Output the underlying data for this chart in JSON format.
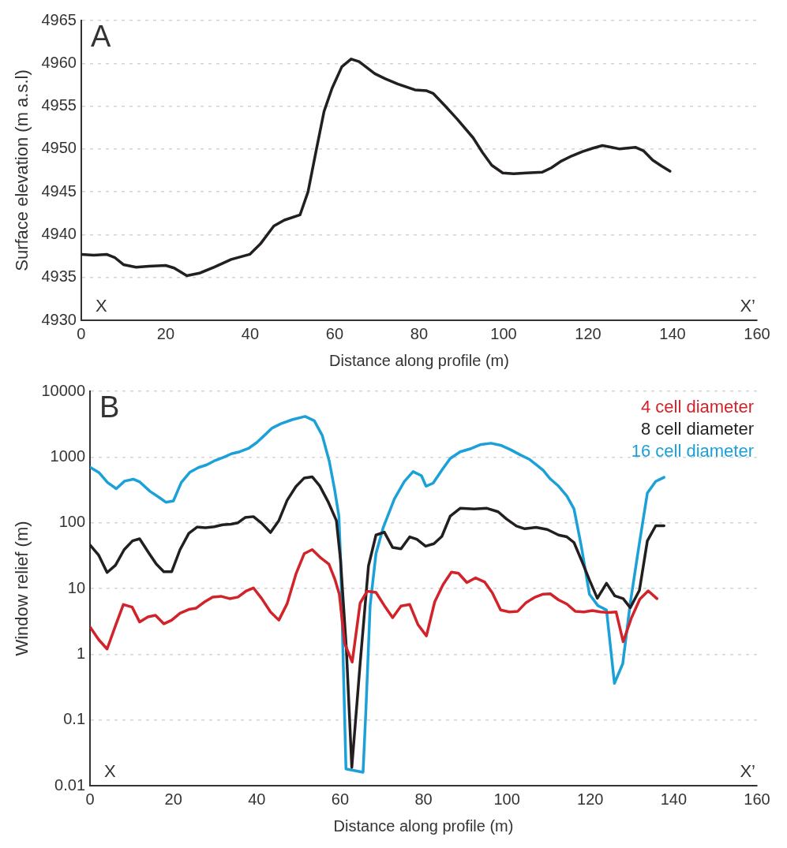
{
  "chart_data": [
    {
      "type": "line",
      "xlabel": "Distance along profile (m)",
      "ylabel": "Surface elevation (m a.s.l)",
      "annotations": [
        "A",
        "X",
        "X’"
      ],
      "xlim": [
        0,
        160
      ],
      "xticks": [
        0,
        20,
        40,
        60,
        80,
        100,
        120,
        140,
        160
      ],
      "ylim": [
        4930,
        4965
      ],
      "yticks": [
        4930,
        4935,
        4940,
        4945,
        4950,
        4955,
        4960,
        4965
      ],
      "grid": "y",
      "marker": "none",
      "line_style": "solid",
      "color": "#231f20",
      "x": [
        0,
        3,
        6,
        8,
        10,
        13,
        16,
        20,
        22,
        25,
        28,
        31.5,
        35.5,
        39.9,
        42.4,
        45.6,
        48.1,
        51.8,
        53.7,
        55.7,
        57.5,
        59.4,
        61.7,
        63.9,
        65.8,
        69.5,
        72,
        74.9,
        79,
        81.8,
        83.3,
        86.2,
        89,
        92.8,
        95,
        97.2,
        99.8,
        102.4,
        105.4,
        109.2,
        111.3,
        113.7,
        116.2,
        118.7,
        121.2,
        123.4,
        125.6,
        127.5,
        129.3,
        131.2,
        133.1,
        135.3,
        137.4,
        139.4
      ],
      "values": [
        4937.7,
        4937.6,
        4937.7,
        4937.3,
        4936.5,
        4936.2,
        4936.3,
        4936.4,
        4936.1,
        4935.2,
        4935.5,
        4936.2,
        4937.1,
        4937.7,
        4938.9,
        4941.0,
        4941.7,
        4942.3,
        4945.0,
        4950.0,
        4954.4,
        4957.1,
        4959.6,
        4960.5,
        4960.2,
        4958.8,
        4958.2,
        4957.6,
        4956.9,
        4956.8,
        4956.5,
        4955.0,
        4953.5,
        4951.3,
        4949.6,
        4948.1,
        4947.2,
        4947.1,
        4947.2,
        4947.3,
        4947.8,
        4948.6,
        4949.2,
        4949.7,
        4950.1,
        4950.4,
        4950.2,
        4950.0,
        4950.1,
        4950.2,
        4949.8,
        4948.7,
        4948.0,
        4947.4
      ]
    },
    {
      "type": "line",
      "xlabel": "Distance along profile (m)",
      "ylabel": "Window relief (m)",
      "annotations": [
        "B",
        "X",
        "X’"
      ],
      "xlim": [
        0,
        160
      ],
      "xticks": [
        0,
        20,
        40,
        60,
        80,
        100,
        120,
        140,
        160
      ],
      "log": "y",
      "ylim": [
        0.01,
        10000
      ],
      "yticks": [
        0.01,
        0.1,
        1,
        10,
        100,
        1000,
        10000
      ],
      "grid": "y",
      "legend": "top right",
      "marker": "none",
      "line_style": "solid",
      "series": [
        {
          "name": "4 cell diameter",
          "color": "#d2232a",
          "x": [
            0,
            2.1,
            4.1,
            6.1,
            8,
            10.1,
            11.9,
            13.9,
            15.7,
            17.7,
            19.6,
            21.6,
            23.7,
            25.4,
            27.4,
            29.4,
            31.4,
            33.5,
            35.5,
            37.5,
            39.2,
            41.2,
            43.3,
            45.3,
            47.3,
            49.4,
            51.4,
            53.3,
            55.4,
            57.3,
            58.8,
            59.8,
            61.1,
            62.9,
            64.8,
            66.5,
            68.6,
            70.6,
            72.6,
            74.6,
            76.7,
            78.7,
            80.7,
            82.7,
            84.7,
            86.7,
            88.4,
            90.4,
            92.5,
            94.7,
            96.5,
            98.5,
            100.6,
            102.6,
            104.6,
            106.6,
            108.7,
            110.4,
            112.4,
            114.4,
            116.4,
            118.5,
            120.5,
            122.5,
            124.2,
            126.2,
            127.9,
            129.9,
            131.9,
            133.9,
            136
          ],
          "values": [
            2.6,
            1.66,
            1.2,
            2.7,
            5.7,
            5.2,
            3.1,
            3.7,
            3.9,
            2.9,
            3.3,
            4.2,
            4.8,
            5.0,
            6.2,
            7.4,
            7.6,
            7.0,
            7.4,
            9.2,
            10.2,
            7.0,
            4.4,
            3.3,
            5.9,
            16.6,
            34,
            39,
            29,
            23.5,
            13.5,
            8.2,
            1.45,
            0.76,
            6.0,
            9.1,
            8.7,
            5.5,
            3.6,
            5.4,
            5.7,
            2.8,
            1.9,
            6.3,
            11.5,
            17.7,
            17,
            12.3,
            14.5,
            12.5,
            8.6,
            4.7,
            4.4,
            4.5,
            6.1,
            7.3,
            8.2,
            8.3,
            6.7,
            5.8,
            4.5,
            4.4,
            4.6,
            4.4,
            4.3,
            4.4,
            1.55,
            3.6,
            6.9,
            9.2,
            7.0
          ]
        },
        {
          "name": "8 cell diameter",
          "color": "#231f20",
          "x": [
            0,
            2.1,
            4.1,
            6.1,
            8.2,
            10.2,
            11.9,
            14.2,
            15.9,
            17.7,
            19.6,
            21.6,
            23.7,
            25.7,
            27.7,
            29.8,
            31.8,
            33.8,
            35.5,
            37.2,
            39.2,
            41.2,
            43.3,
            45.3,
            47.3,
            49.4,
            51.4,
            53.3,
            55.1,
            57.1,
            59.1,
            60.1,
            61.5,
            62.8,
            64.8,
            66.8,
            68.6,
            70.6,
            72.6,
            74.6,
            76.7,
            78.4,
            80.5,
            82.5,
            84.4,
            86.4,
            88.8,
            92.1,
            95.2,
            97.9,
            99.9,
            102.3,
            104.3,
            107,
            109.7,
            112.4,
            114.4,
            116.1,
            118.1,
            119.8,
            121.7,
            123.9,
            125.9,
            127.9,
            129.6,
            131.8,
            133.7,
            135.7,
            137.7
          ],
          "values": [
            46,
            32,
            17.5,
            22.5,
            39,
            53,
            57,
            34,
            23.5,
            18,
            18,
            39,
            69,
            86,
            84,
            87,
            93,
            95,
            100,
            120,
            124,
            98,
            71,
            108,
            220,
            355,
            480,
            500,
            365,
            210,
            108,
            27,
            1.2,
            0.019,
            0.72,
            22,
            65,
            72,
            42,
            40,
            61,
            56,
            44,
            48,
            62,
            126,
            166,
            162,
            166,
            147,
            114,
            89,
            81,
            85,
            79,
            65,
            61,
            50,
            25,
            13.5,
            7.1,
            12,
            7.7,
            7.0,
            5.1,
            9.4,
            53,
            90,
            90
          ]
        },
        {
          "name": "16 cell diameter",
          "color": "#1ba1d8",
          "x": [
            0,
            2.2,
            4.2,
            6.3,
            8.3,
            10.4,
            12,
            14.4,
            16.5,
            18.2,
            20,
            21.9,
            24,
            26,
            28,
            30.1,
            32.2,
            33.9,
            35.9,
            38,
            40,
            41.7,
            43.7,
            45.8,
            48.5,
            51.6,
            53.8,
            55.7,
            57.4,
            58.7,
            59.7,
            60.1,
            61.4,
            65.5,
            66.2,
            67.2,
            68.6,
            70.3,
            73,
            75.4,
            77.5,
            79.5,
            80.6,
            82.3,
            84.4,
            86.4,
            88.8,
            91.5,
            93.8,
            96.2,
            98.5,
            100.9,
            103.3,
            105.3,
            107,
            108.7,
            110.4,
            112.4,
            114.4,
            116.1,
            117.8,
            119.8,
            121.8,
            123.9,
            125.8,
            127.8,
            129.6,
            131.6,
            133.7,
            135.7,
            137.7
          ],
          "values": [
            700,
            575,
            410,
            330,
            430,
            460,
            415,
            300,
            245,
            205,
            215,
            410,
            590,
            690,
            760,
            890,
            1000,
            1120,
            1200,
            1350,
            1660,
            2090,
            2760,
            3210,
            3700,
            4140,
            3560,
            2140,
            860,
            315,
            126,
            30,
            0.018,
            0.016,
            0.15,
            5.5,
            34,
            83,
            230,
            425,
            600,
            520,
            360,
            400,
            630,
            950,
            1200,
            1350,
            1550,
            1620,
            1510,
            1290,
            1070,
            930,
            770,
            630,
            465,
            360,
            255,
            162,
            46,
            8.2,
            5.5,
            4.7,
            0.36,
            0.72,
            6,
            41,
            283,
            425,
            490
          ]
        }
      ]
    }
  ]
}
